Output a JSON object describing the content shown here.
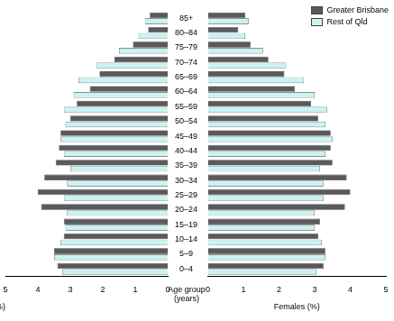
{
  "chart_data": [
    {
      "type": "bar",
      "orientation": "horizontal",
      "xlabel": "Males (%)",
      "ylabel": "Age group (years)",
      "categories": [
        "85+",
        "80–84",
        "75–79",
        "70–74",
        "65–69",
        "60–64",
        "55–59",
        "50–54",
        "45–49",
        "40–44",
        "35–39",
        "30–34",
        "25–29",
        "20–24",
        "15–19",
        "10–14",
        "5–9",
        "0–4"
      ],
      "series": [
        {
          "name": "Greater Brisbane",
          "color": "#5a5a5a",
          "values": [
            0.55,
            0.6,
            1.07,
            1.65,
            2.1,
            2.4,
            2.8,
            3.0,
            3.3,
            3.35,
            3.45,
            3.8,
            4.0,
            3.9,
            3.2,
            3.2,
            3.5,
            3.4
          ]
        },
        {
          "name": "Rest of Qld",
          "color": "#ccf2f2",
          "values": [
            0.7,
            0.9,
            1.5,
            2.2,
            2.75,
            2.9,
            3.2,
            3.15,
            3.3,
            3.2,
            3.0,
            3.1,
            3.2,
            3.1,
            3.15,
            3.3,
            3.5,
            3.25
          ]
        }
      ],
      "xlim": [
        0,
        5
      ],
      "xticks": [
        0,
        1,
        2,
        3,
        4,
        5
      ],
      "grid": false
    },
    {
      "type": "bar",
      "orientation": "horizontal",
      "xlabel": "Females (%)",
      "categories": [
        "85+",
        "80–84",
        "75–79",
        "70–74",
        "65–69",
        "60–64",
        "55–59",
        "50–54",
        "45–49",
        "40–44",
        "35–39",
        "30–34",
        "25–29",
        "20–24",
        "15–19",
        "10–14",
        "5–9",
        "0–4"
      ],
      "series": [
        {
          "name": "Greater Brisbane",
          "color": "#5a5a5a",
          "values": [
            1.05,
            0.85,
            1.2,
            1.7,
            2.15,
            2.45,
            2.9,
            3.1,
            3.45,
            3.45,
            3.5,
            3.9,
            4.0,
            3.85,
            3.15,
            3.1,
            3.3,
            3.25
          ]
        },
        {
          "name": "Rest of Qld",
          "color": "#ccf2f2",
          "values": [
            1.15,
            1.05,
            1.55,
            2.2,
            2.7,
            3.0,
            3.35,
            3.3,
            3.5,
            3.3,
            3.15,
            3.25,
            3.25,
            3.0,
            3.0,
            3.2,
            3.3,
            3.05
          ]
        }
      ],
      "xlim": [
        0,
        5
      ],
      "xticks": [
        0,
        1,
        2,
        3,
        4,
        5
      ],
      "grid": false,
      "legend": "upper right"
    }
  ]
}
